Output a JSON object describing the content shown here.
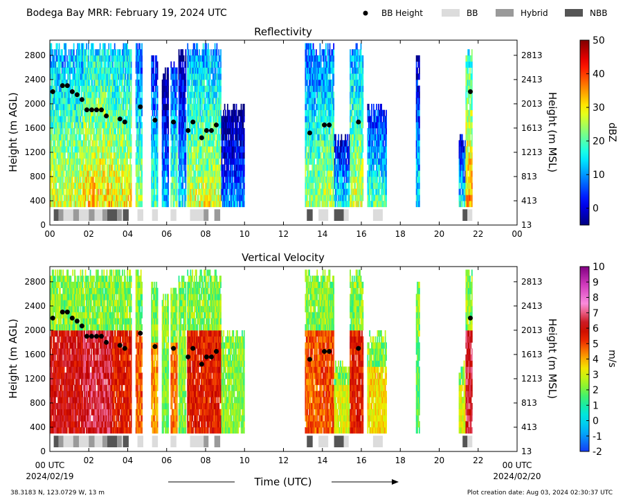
{
  "header": {
    "title": "Bodega Bay MRR:  February 19, 2024 UTC",
    "legend": [
      {
        "label": "BB Height",
        "kind": "dot",
        "color": "#000000"
      },
      {
        "label": "BB",
        "kind": "swatch",
        "color": "#dcdcdc"
      },
      {
        "label": "Hybrid",
        "kind": "swatch",
        "color": "#9a9a9a"
      },
      {
        "label": "NBB",
        "kind": "swatch",
        "color": "#555555"
      }
    ]
  },
  "footer": {
    "location": "38.3183 N, 123.0729 W, 13 m",
    "created": "Plot creation date: Aug 03, 2024 02:30:37 UTC",
    "time_label": "Time (UTC)",
    "start_time": "00 UTC",
    "start_date": "2024/02/19",
    "end_time": "00 UTC",
    "end_date": "2024/02/20"
  },
  "chart_data": [
    {
      "type": "heatmap",
      "title": "Reflectivity",
      "ylabel": "Height (m AGL)",
      "y2label": "Height (m MSL)",
      "colorbar_label": "dBZ",
      "colormap": "jet",
      "clim": [
        -5,
        50
      ],
      "colorbar_ticks": [
        "50",
        "40",
        "30",
        "20",
        "10",
        "0"
      ],
      "colorbar_tick_values": [
        50,
        40,
        30,
        20,
        10,
        0
      ],
      "x_ticks": [
        "00",
        "02",
        "04",
        "06",
        "08",
        "10",
        "12",
        "14",
        "16",
        "18",
        "20",
        "22",
        "00"
      ],
      "y_ticks": [
        "0",
        "400",
        "800",
        "1200",
        "1600",
        "2000",
        "2400",
        "2800"
      ],
      "y2_ticks": [
        "13",
        "413",
        "813",
        "1213",
        "1613",
        "2013",
        "2413",
        "2813"
      ],
      "xlim": [
        0,
        24
      ],
      "ylim": [
        0,
        3050
      ]
    },
    {
      "type": "heatmap",
      "title": "Vertical Velocity",
      "ylabel": "Height (m AGL)",
      "y2label": "Height (m MSL)",
      "colorbar_label": "m/s",
      "colormap": "velocity",
      "clim": [
        -2,
        10
      ],
      "colorbar_ticks": [
        "10",
        "9",
        "8",
        "7",
        "6",
        "5",
        "4",
        "3",
        "2",
        "1",
        "0",
        "-1",
        "-2"
      ],
      "colorbar_tick_values": [
        10,
        9,
        8,
        7,
        6,
        5,
        4,
        3,
        2,
        1,
        0,
        -1,
        -2
      ],
      "x_ticks": [
        "00",
        "02",
        "04",
        "06",
        "08",
        "10",
        "12",
        "14",
        "16",
        "18",
        "20",
        "22",
        "00"
      ],
      "y_ticks": [
        "0",
        "400",
        "800",
        "1200",
        "1600",
        "2000",
        "2400",
        "2800"
      ],
      "y2_ticks": [
        "13",
        "413",
        "813",
        "1213",
        "1613",
        "2013",
        "2413",
        "2813"
      ],
      "xlim": [
        0,
        24
      ],
      "ylim": [
        0,
        3050
      ]
    }
  ],
  "bb_height_points": [
    {
      "t": 0.15,
      "h": 2200
    },
    {
      "t": 0.65,
      "h": 2300
    },
    {
      "t": 0.9,
      "h": 2300
    },
    {
      "t": 1.15,
      "h": 2200
    },
    {
      "t": 1.4,
      "h": 2150
    },
    {
      "t": 1.65,
      "h": 2070
    },
    {
      "t": 1.9,
      "h": 1900
    },
    {
      "t": 2.15,
      "h": 1900
    },
    {
      "t": 2.4,
      "h": 1900
    },
    {
      "t": 2.65,
      "h": 1900
    },
    {
      "t": 2.9,
      "h": 1800
    },
    {
      "t": 3.6,
      "h": 1750
    },
    {
      "t": 3.85,
      "h": 1700
    },
    {
      "t": 4.65,
      "h": 1950
    },
    {
      "t": 5.4,
      "h": 1730
    },
    {
      "t": 6.35,
      "h": 1700
    },
    {
      "t": 7.1,
      "h": 1560
    },
    {
      "t": 7.35,
      "h": 1700
    },
    {
      "t": 7.8,
      "h": 1440
    },
    {
      "t": 8.05,
      "h": 1560
    },
    {
      "t": 8.3,
      "h": 1560
    },
    {
      "t": 8.55,
      "h": 1650
    },
    {
      "t": 13.35,
      "h": 1520
    },
    {
      "t": 14.1,
      "h": 1650
    },
    {
      "t": 14.35,
      "h": 1650
    },
    {
      "t": 15.85,
      "h": 1700
    },
    {
      "t": 21.6,
      "h": 2200
    }
  ],
  "bb_type_segments": [
    {
      "t0": 0.2,
      "t1": 0.45,
      "kind": "NBB"
    },
    {
      "t0": 0.45,
      "t1": 0.7,
      "kind": "Hybrid"
    },
    {
      "t0": 0.7,
      "t1": 1.2,
      "kind": "BB"
    },
    {
      "t0": 1.2,
      "t1": 1.5,
      "kind": "Hybrid"
    },
    {
      "t0": 1.5,
      "t1": 2.0,
      "kind": "BB"
    },
    {
      "t0": 2.0,
      "t1": 2.3,
      "kind": "Hybrid"
    },
    {
      "t0": 2.3,
      "t1": 2.7,
      "kind": "BB"
    },
    {
      "t0": 2.7,
      "t1": 2.95,
      "kind": "Hybrid"
    },
    {
      "t0": 2.95,
      "t1": 3.45,
      "kind": "NBB"
    },
    {
      "t0": 3.45,
      "t1": 3.7,
      "kind": "Hybrid"
    },
    {
      "t0": 3.75,
      "t1": 4.05,
      "kind": "NBB"
    },
    {
      "t0": 4.5,
      "t1": 4.8,
      "kind": "BB"
    },
    {
      "t0": 5.25,
      "t1": 5.55,
      "kind": "BB"
    },
    {
      "t0": 6.2,
      "t1": 6.5,
      "kind": "BB"
    },
    {
      "t0": 7.2,
      "t1": 7.9,
      "kind": "BB"
    },
    {
      "t0": 7.9,
      "t1": 8.15,
      "kind": "Hybrid"
    },
    {
      "t0": 8.45,
      "t1": 8.75,
      "kind": "Hybrid"
    },
    {
      "t0": 13.2,
      "t1": 13.5,
      "kind": "NBB"
    },
    {
      "t0": 13.8,
      "t1": 14.3,
      "kind": "BB"
    },
    {
      "t0": 14.6,
      "t1": 15.1,
      "kind": "NBB"
    },
    {
      "t0": 15.1,
      "t1": 15.35,
      "kind": "BB"
    },
    {
      "t0": 16.6,
      "t1": 17.1,
      "kind": "BB"
    },
    {
      "t0": 21.2,
      "t1": 21.45,
      "kind": "NBB"
    },
    {
      "t0": 21.45,
      "t1": 21.7,
      "kind": "BB"
    }
  ],
  "echo_periods": [
    {
      "t0": 0.0,
      "t1": 1.7,
      "top": 3000,
      "ref": 22,
      "vel": 6.0
    },
    {
      "t0": 1.7,
      "t1": 3.2,
      "top": 3000,
      "ref": 26,
      "vel": 6.5
    },
    {
      "t0": 3.2,
      "t1": 4.2,
      "top": 3000,
      "ref": 24,
      "vel": 5.5
    },
    {
      "t0": 4.4,
      "t1": 4.75,
      "top": 3000,
      "ref": 18,
      "vel": 4.8
    },
    {
      "t0": 5.2,
      "t1": 5.55,
      "top": 2800,
      "ref": 14,
      "vel": 4.2
    },
    {
      "t0": 5.75,
      "t1": 6.1,
      "top": 2600,
      "ref": 6,
      "vel": 2.0
    },
    {
      "t0": 6.2,
      "t1": 6.55,
      "top": 2700,
      "ref": 16,
      "vel": 4.5
    },
    {
      "t0": 6.6,
      "t1": 7.0,
      "top": 2900,
      "ref": 8,
      "vel": 2.2
    },
    {
      "t0": 7.05,
      "t1": 8.8,
      "top": 3000,
      "ref": 22,
      "vel": 5.5
    },
    {
      "t0": 8.8,
      "t1": 10.0,
      "top": 2000,
      "ref": 4,
      "vel": 2.2
    },
    {
      "t0": 13.1,
      "t1": 13.9,
      "top": 3000,
      "ref": 18,
      "vel": 4.8
    },
    {
      "t0": 13.9,
      "t1": 14.6,
      "top": 3000,
      "ref": 20,
      "vel": 5.0
    },
    {
      "t0": 14.6,
      "t1": 15.4,
      "top": 1500,
      "ref": 10,
      "vel": 3.0
    },
    {
      "t0": 15.4,
      "t1": 16.1,
      "top": 3000,
      "ref": 22,
      "vel": 5.5
    },
    {
      "t0": 16.3,
      "t1": 17.3,
      "top": 2000,
      "ref": 14,
      "vel": 3.5
    },
    {
      "t0": 18.8,
      "t1": 19.0,
      "top": 2800,
      "ref": 10,
      "vel": 1.8
    },
    {
      "t0": 21.0,
      "t1": 21.35,
      "top": 1500,
      "ref": 10,
      "vel": 3.0
    },
    {
      "t0": 21.35,
      "t1": 21.7,
      "top": 3000,
      "ref": 28,
      "vel": 6.5
    }
  ]
}
